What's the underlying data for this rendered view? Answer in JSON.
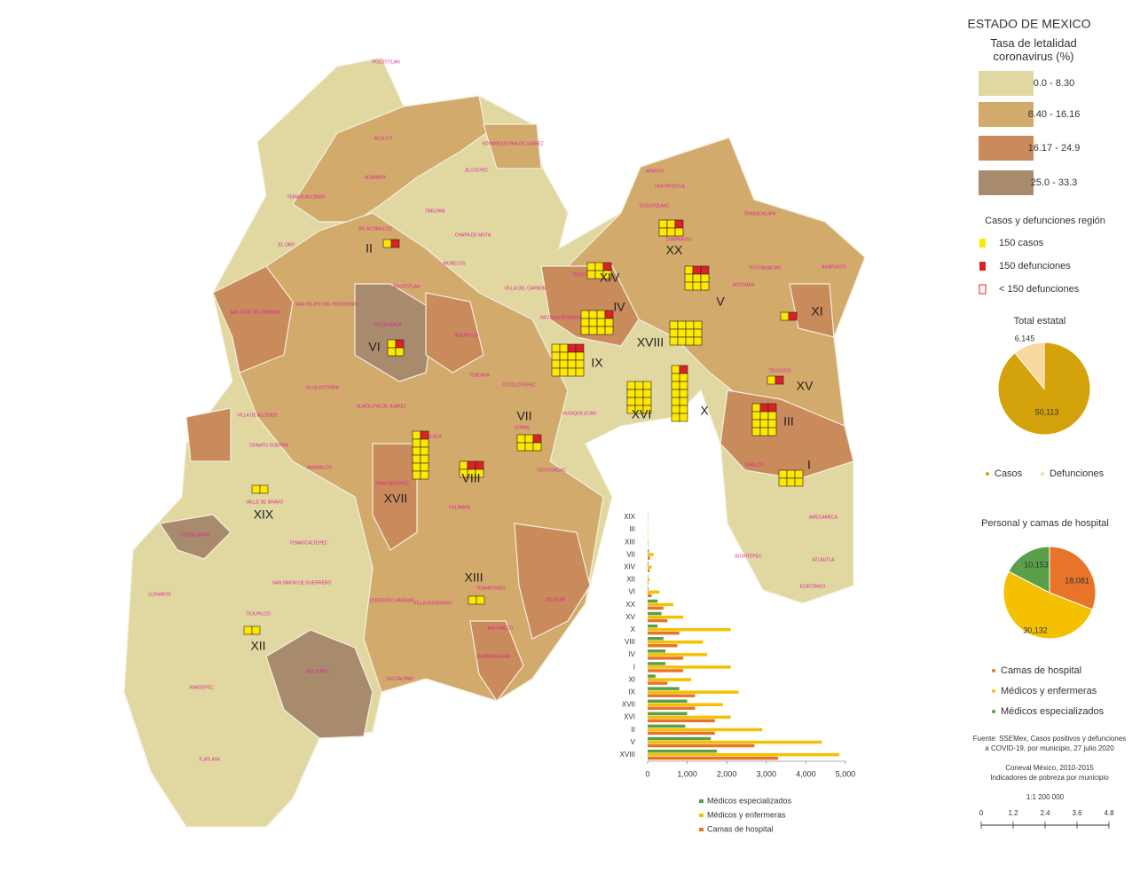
{
  "title": "ESTADO DE MEXICO",
  "legend": {
    "title": "Tasa de letalidad coronavirus (%)",
    "classes": [
      {
        "label": "0.0 - 8.30",
        "color": "#e0d8a0"
      },
      {
        "label": "8.40 - 16.16",
        "color": "#d2aa6c"
      },
      {
        "label": "16.17 - 24.9",
        "color": "#c98a5c"
      },
      {
        "label": "25.0 - 33.3",
        "color": "#a88a6c"
      }
    ]
  },
  "symbols": {
    "title": "Casos y defunciones región",
    "items": [
      "150 casos",
      "150 defunciones",
      "< 150 defunciones"
    ]
  },
  "regions": [
    "I",
    "II",
    "III",
    "IV",
    "V",
    "VI",
    "VII",
    "VIII",
    "IX",
    "X",
    "XI",
    "XII",
    "XIII",
    "XIV",
    "XV",
    "XVI",
    "XVII",
    "XVIII",
    "XIX",
    "XX"
  ],
  "municipalities": [
    "POLOTITLAN",
    "ACULCO",
    "SOYANIQUILPAN DE JUAREZ",
    "JILOTEPEC",
    "ACAMBAY",
    "TIMILPAN",
    "CHAPA DE MOTA",
    "MORELOS",
    "VILLA DEL CARBON",
    "TEMASCALCINGO",
    "ATLACOMULCO",
    "EL ORO",
    "JOCOTITLAN",
    "SAN FELIPE DEL PROGRESO",
    "SAN JOSE DEL RINCON",
    "IXTLAHUACA",
    "JIQUIPILCO",
    "VILLA VICTORIA",
    "ALMOLOYA DE JUAREZ",
    "VILLA DE ALLENDE",
    "DONATO GUERRA",
    "TEMOAYA",
    "OTZOLOTEPEC",
    "TOLUCA",
    "LERMA",
    "ZINACANTEPEC",
    "AMANALCO",
    "VALLE DE BRAVO",
    "OCOYOACAC",
    "CALIMAYA",
    "TEMASCALTEPEC",
    "OTZOLOAPAN",
    "SAN SIMON DE GUERRERO",
    "TEJUPILCO",
    "LUVIANOS",
    "AMATEPEC",
    "SULTEPEC",
    "TLATLAYA",
    "ZACUALPAN",
    "COATEPEC HARINAS",
    "VILLA GUERRERO",
    "TENANCINGO",
    "MALINALCO",
    "OCUILAN",
    "ZUMPAHUACAN",
    "APAXCO",
    "HUEYPOXTLA",
    "TEQUIXQUIAC",
    "ZUMPANGO",
    "TEMASCALAPA",
    "AXAPUSCO",
    "TEOTIHUACAN",
    "ACOLMAN",
    "TEPOTZOTLAN",
    "NICOLAS ROMERO",
    "HUIXQUILUCAN",
    "TEXCOCO",
    "CHALCO",
    "AMECAMECA",
    "JUCHITEPEC",
    "ATLAUTLA",
    "ECATZINGO"
  ],
  "chart_data": [
    {
      "type": "pie",
      "title": "Total estatal",
      "categories": [
        "Casos",
        "Defunciones"
      ],
      "values": [
        50113,
        6145
      ],
      "value_labels": [
        "50,113",
        "6,145"
      ],
      "colors": [
        "#d4a20a",
        "#f8d8a0"
      ]
    },
    {
      "type": "pie",
      "title": "Personal y camas de hospital",
      "categories": [
        "Camas de hospital",
        "Médicos y enfermeras",
        "Médicos especializados"
      ],
      "values": [
        18081,
        30132,
        10153
      ],
      "value_labels": [
        "18,081",
        "30,132",
        "10,153"
      ],
      "colors": [
        "#e8742a",
        "#f4c000",
        "#5aa04a"
      ]
    },
    {
      "type": "hbar",
      "categories": [
        "XIX",
        "III",
        "XIII",
        "VII",
        "XIV",
        "XII",
        "VI",
        "XX",
        "XV",
        "X",
        "VIII",
        "IV",
        "I",
        "XI",
        "IX",
        "XVII",
        "XVI",
        "II",
        "V",
        "XVIII"
      ],
      "series": [
        {
          "name": "Médicos especializados",
          "color": "#5aa04a",
          "values": [
            5,
            5,
            5,
            30,
            20,
            10,
            20,
            250,
            350,
            250,
            400,
            450,
            450,
            200,
            800,
            1000,
            1000,
            950,
            1600,
            1750
          ]
        },
        {
          "name": "Médicos y enfermeras",
          "color": "#f4c000",
          "values": [
            10,
            10,
            20,
            150,
            100,
            50,
            300,
            650,
            900,
            2100,
            1400,
            1500,
            2100,
            1100,
            2300,
            1900,
            2100,
            2900,
            4400,
            4850
          ]
        },
        {
          "name": "Camas de hospital",
          "color": "#e8742a",
          "values": [
            5,
            5,
            10,
            60,
            50,
            20,
            100,
            400,
            500,
            800,
            750,
            900,
            900,
            500,
            1200,
            1200,
            1700,
            1700,
            2700,
            3300
          ]
        }
      ],
      "xlim": [
        0,
        5000
      ],
      "xticks": [
        0,
        {
          "value": 1000,
          "label": "1,000"
        },
        {
          "value": 2000,
          "label": "2,000"
        },
        {
          "value": 3000,
          "label": "3,000"
        },
        {
          "value": 4000,
          "label": "4,000"
        },
        {
          "value": 5000,
          "label": "5,000"
        }
      ]
    }
  ],
  "source": [
    "Fuente: SSEMex, Casos positivos y defunciones",
    "a COVID-19, por municipio, 27 julio 2020",
    "Coneval México, 2010-2015",
    "Indicadores de pobreza por municipio"
  ],
  "scale": {
    "label": "1:1 200 000",
    "ticks": [
      0,
      1.2,
      2.4,
      3.6,
      4.8
    ]
  }
}
